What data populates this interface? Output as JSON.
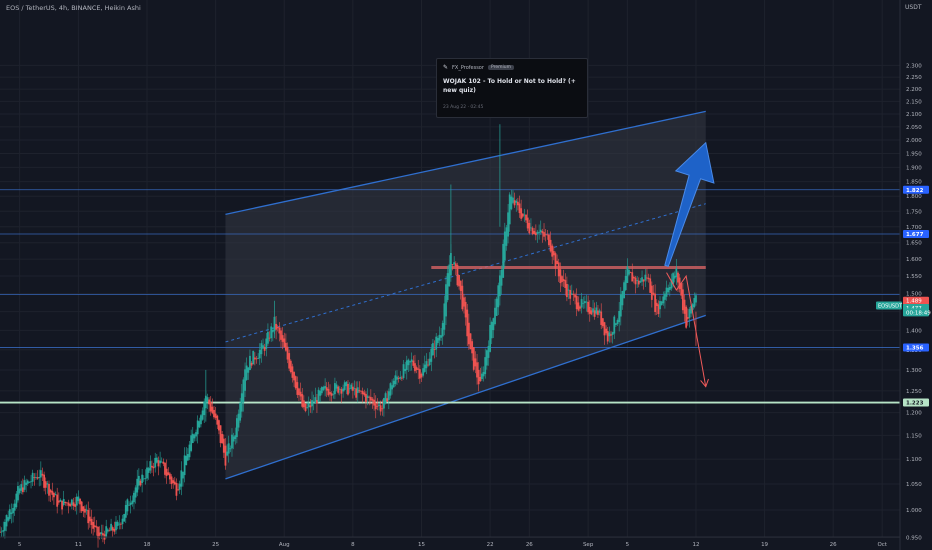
{
  "header": {
    "symbol_info": "EOS / TetherUS, 4h, BINANCE, Heikin Ashi"
  },
  "price_axis": {
    "currency": "USDT"
  },
  "idea_tooltip": {
    "user": "FX_Professor",
    "badge": "Premium",
    "title": "WOJAK 102 - To Hold or Not to Hold? (+ new quiz)",
    "timestamp": "23 Aug 22 · 02:45",
    "icon": "pencil-icon"
  },
  "colors": {
    "background": "#131722",
    "grid": "#1e222d",
    "channel_line": "#2f6fcf",
    "channel_fill": "#343844",
    "bull": "#26a69a",
    "bear": "#ef5350",
    "support_line": "#b7e4c7",
    "resistance_line": "#e06666",
    "arrow_up": "#1e62c8",
    "arrow_down": "#f05a5a",
    "horizontal_level": "#3a6fc9"
  },
  "chart_data": {
    "type": "candlestick",
    "title": "EOS / TetherUS, 4h, BINANCE, Heikin Ashi",
    "x_range": [
      "2022-07-03",
      "2022-10-02"
    ],
    "ylim": [
      0.93,
      2.42
    ],
    "y_scale": "log",
    "y_ticks": [
      "2.300",
      "2.250",
      "2.200",
      "2.150",
      "2.100",
      "2.050",
      "2.000",
      "1.950",
      "1.900",
      "1.850",
      "1.800",
      "1.750",
      "1.700",
      "1.650",
      "1.600",
      "1.550",
      "1.500",
      "1.450",
      "1.400",
      "1.350",
      "1.300",
      "1.250",
      "1.200",
      "1.150",
      "1.100",
      "1.050",
      "1.000",
      "0.950"
    ],
    "x_ticks": [
      {
        "date": "2022-07-05",
        "label": "5"
      },
      {
        "date": "2022-07-11",
        "label": "11"
      },
      {
        "date": "2022-07-18",
        "label": "18"
      },
      {
        "date": "2022-07-25",
        "label": "25"
      },
      {
        "date": "2022-08-01",
        "label": "Aug"
      },
      {
        "date": "2022-08-08",
        "label": "8"
      },
      {
        "date": "2022-08-15",
        "label": "15"
      },
      {
        "date": "2022-08-22",
        "label": "22"
      },
      {
        "date": "2022-08-26",
        "label": "26"
      },
      {
        "date": "2022-09-01",
        "label": "Sep"
      },
      {
        "date": "2022-09-05",
        "label": "5"
      },
      {
        "date": "2022-09-12",
        "label": "12"
      },
      {
        "date": "2022-09-19",
        "label": "19"
      },
      {
        "date": "2022-09-26",
        "label": "26"
      },
      {
        "date": "2022-10-01",
        "label": "Oct"
      }
    ],
    "close_path": [
      {
        "date": "2022-07-03",
        "close": 0.96
      },
      {
        "date": "2022-07-05",
        "close": 1.04
      },
      {
        "date": "2022-07-07",
        "close": 1.07
      },
      {
        "date": "2022-07-09",
        "close": 1.01
      },
      {
        "date": "2022-07-11",
        "close": 1.02
      },
      {
        "date": "2022-07-13",
        "close": 0.95
      },
      {
        "date": "2022-07-15",
        "close": 0.97
      },
      {
        "date": "2022-07-17",
        "close": 1.05
      },
      {
        "date": "2022-07-19",
        "close": 1.1
      },
      {
        "date": "2022-07-21",
        "close": 1.04
      },
      {
        "date": "2022-07-23",
        "close": 1.17
      },
      {
        "date": "2022-07-24",
        "close": 1.24
      },
      {
        "date": "2022-07-25",
        "close": 1.18
      },
      {
        "date": "2022-07-26",
        "close": 1.1
      },
      {
        "date": "2022-07-27",
        "close": 1.16
      },
      {
        "date": "2022-07-28",
        "close": 1.31
      },
      {
        "date": "2022-07-30",
        "close": 1.36
      },
      {
        "date": "2022-07-31",
        "close": 1.42
      },
      {
        "date": "2022-08-02",
        "close": 1.28
      },
      {
        "date": "2022-08-03",
        "close": 1.2
      },
      {
        "date": "2022-08-05",
        "close": 1.25
      },
      {
        "date": "2022-08-07",
        "close": 1.26
      },
      {
        "date": "2022-08-09",
        "close": 1.24
      },
      {
        "date": "2022-08-11",
        "close": 1.21
      },
      {
        "date": "2022-08-12",
        "close": 1.27
      },
      {
        "date": "2022-08-14",
        "close": 1.32
      },
      {
        "date": "2022-08-15",
        "close": 1.29
      },
      {
        "date": "2022-08-17",
        "close": 1.4
      },
      {
        "date": "2022-08-18",
        "close": 1.62
      },
      {
        "date": "2022-08-19",
        "close": 1.5
      },
      {
        "date": "2022-08-20",
        "close": 1.34
      },
      {
        "date": "2022-08-21",
        "close": 1.26
      },
      {
        "date": "2022-08-22",
        "close": 1.4
      },
      {
        "date": "2022-08-23",
        "close": 1.54
      },
      {
        "date": "2022-08-24",
        "close": 1.8
      },
      {
        "date": "2022-08-25",
        "close": 1.75
      },
      {
        "date": "2022-08-26",
        "close": 1.7
      },
      {
        "date": "2022-08-28",
        "close": 1.66
      },
      {
        "date": "2022-08-29",
        "close": 1.55
      },
      {
        "date": "2022-08-30",
        "close": 1.5
      },
      {
        "date": "2022-08-31",
        "close": 1.47
      },
      {
        "date": "2022-09-02",
        "close": 1.45
      },
      {
        "date": "2022-09-03",
        "close": 1.38
      },
      {
        "date": "2022-09-04",
        "close": 1.44
      },
      {
        "date": "2022-09-05",
        "close": 1.56
      },
      {
        "date": "2022-09-06",
        "close": 1.53
      },
      {
        "date": "2022-09-07",
        "close": 1.55
      },
      {
        "date": "2022-09-08",
        "close": 1.45
      },
      {
        "date": "2022-09-09",
        "close": 1.52
      },
      {
        "date": "2022-09-10",
        "close": 1.56
      },
      {
        "date": "2022-09-11",
        "close": 1.42
      },
      {
        "date": "2022-09-12",
        "close": 1.5
      }
    ],
    "channel": {
      "lower": [
        {
          "date": "2022-07-26",
          "price": 1.06
        },
        {
          "date": "2022-09-13",
          "price": 1.44
        }
      ],
      "upper": [
        {
          "date": "2022-07-26",
          "price": 1.74
        },
        {
          "date": "2022-09-13",
          "price": 2.11
        }
      ],
      "mid": [
        {
          "date": "2022-07-26",
          "price": 1.37
        },
        {
          "date": "2022-09-13",
          "price": 1.775
        }
      ]
    },
    "horizontal_levels": [
      {
        "price": 1.822,
        "label": "1.822"
      },
      {
        "price": 1.677,
        "label": "1.677"
      },
      {
        "price": 1.356,
        "label": "1.356"
      },
      {
        "price": 1.497,
        "label": ""
      }
    ],
    "support": {
      "price": 1.223,
      "label": "1.223"
    },
    "resistance": {
      "price": 1.575,
      "from": "2022-08-16",
      "to": "2022-09-13"
    },
    "arrows": [
      {
        "direction": "up",
        "from": {
          "date": "2022-09-09",
          "price": 1.58
        },
        "to": {
          "date": "2022-09-13",
          "price": 1.99
        }
      },
      {
        "direction": "down",
        "path": [
          {
            "date": "2022-09-09",
            "price": 1.56
          },
          {
            "date": "2022-09-10",
            "price": 1.51
          },
          {
            "date": "2022-09-11",
            "price": 1.55
          },
          {
            "date": "2022-09-13",
            "price": 1.26
          }
        ]
      }
    ],
    "price_labels": [
      {
        "price": 1.48,
        "text": "1.489",
        "color": "#ef5350"
      },
      {
        "price": 1.467,
        "text": "EOSUSDT",
        "color": "#26a69a"
      },
      {
        "price": 1.46,
        "text": "1.477",
        "color": "#26a69a"
      },
      {
        "price": 1.448,
        "text": "00:18:49",
        "color": "#26a69a"
      }
    ]
  }
}
